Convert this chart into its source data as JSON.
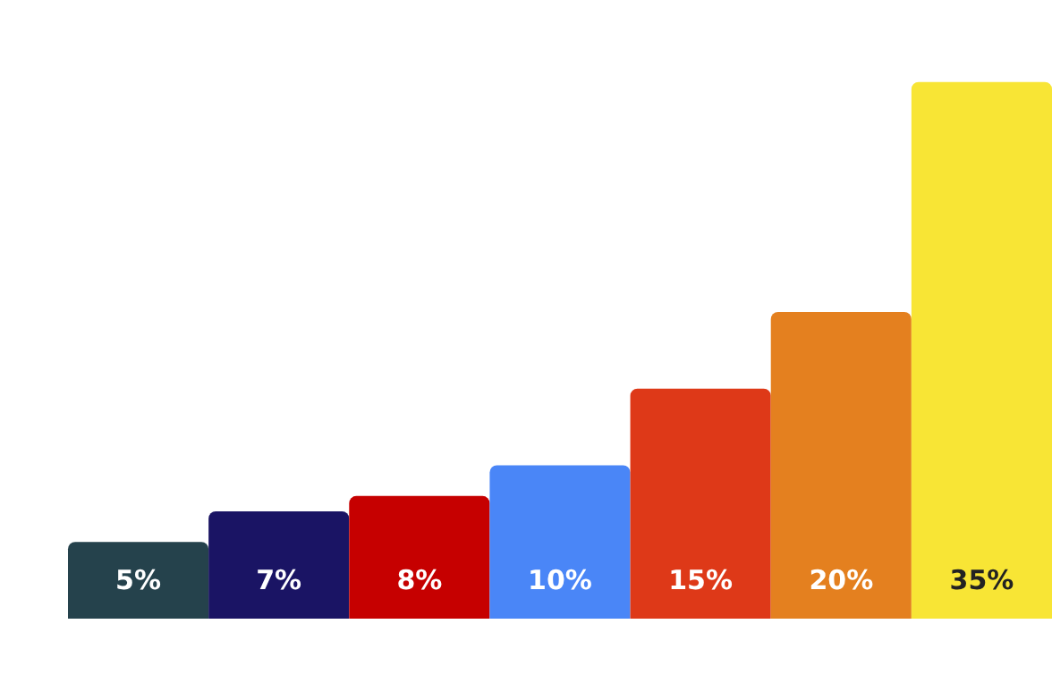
{
  "chart_data": {
    "type": "bar",
    "categories": [
      null,
      null,
      null,
      null,
      null,
      null,
      null
    ],
    "values": [
      5,
      7,
      8,
      10,
      15,
      20,
      35
    ],
    "value_labels": [
      "5%",
      "7%",
      "8%",
      "10%",
      "15%",
      "20%",
      "35%"
    ],
    "colors": [
      "#25424c",
      "#1a1464",
      "#c60000",
      "#4a86f7",
      "#de3918",
      "#e4801f",
      "#f8e535"
    ],
    "tick_labels": false
  }
}
